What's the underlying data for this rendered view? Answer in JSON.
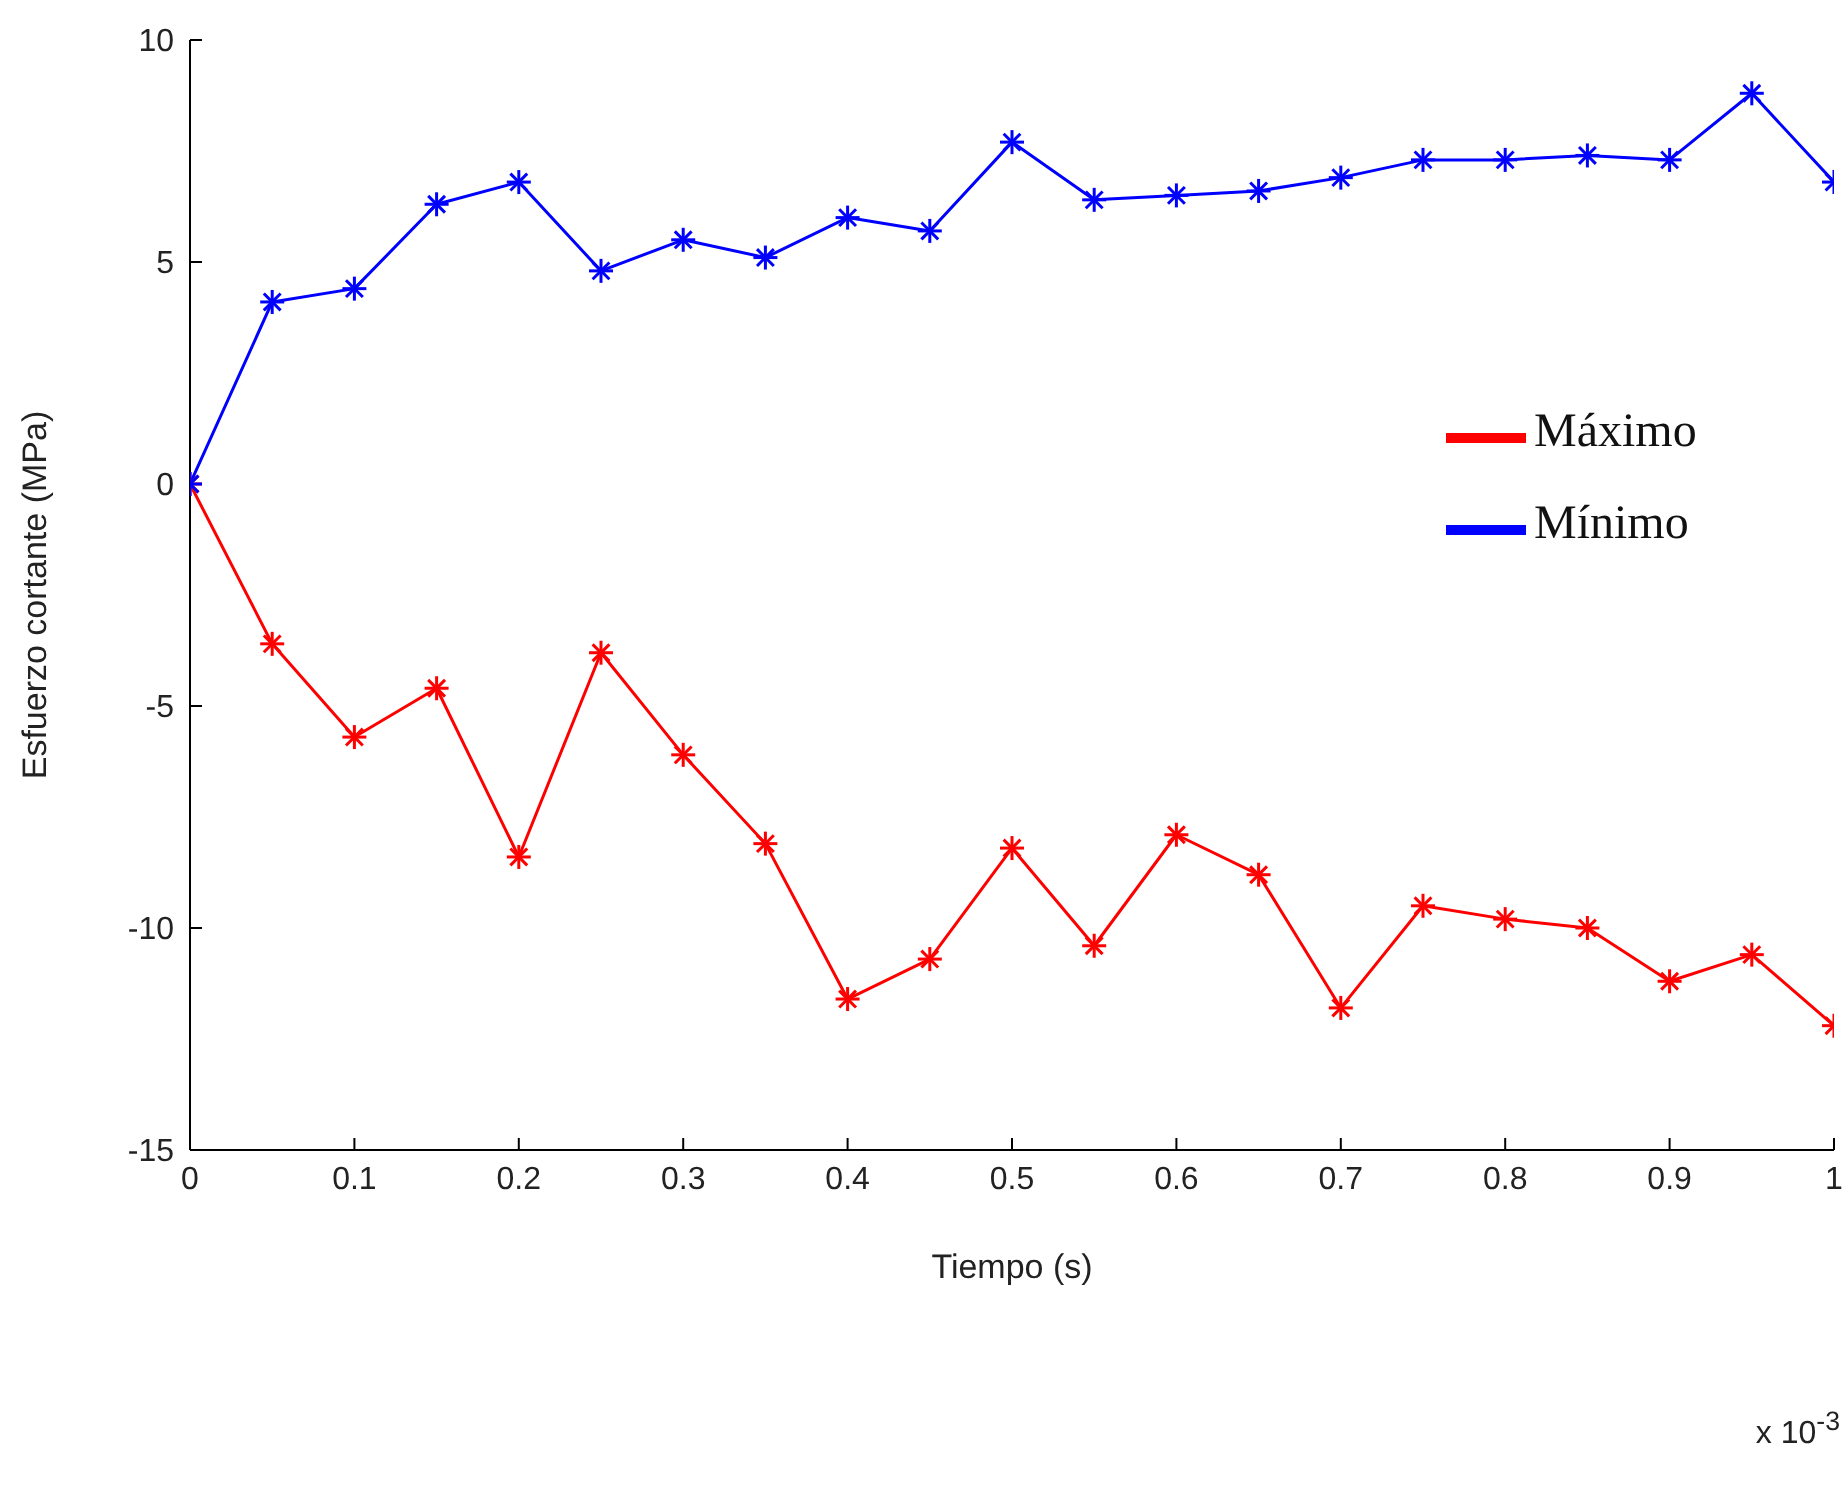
{
  "chart_data": {
    "type": "line",
    "xlabel": "Tiempo (s)",
    "ylabel": "Esfuerzo cortante (MPa)",
    "x": [
      0,
      0.05,
      0.1,
      0.15,
      0.2,
      0.25,
      0.3,
      0.35,
      0.4,
      0.45,
      0.5,
      0.55,
      0.6,
      0.65,
      0.7,
      0.75,
      0.8,
      0.85,
      0.9,
      0.95,
      1
    ],
    "series": [
      {
        "name": "Máximo",
        "color": "#ff0000",
        "values": [
          0,
          -3.6,
          -5.7,
          -4.6,
          -8.4,
          -3.8,
          -6.1,
          -8.1,
          -11.6,
          -10.7,
          -8.2,
          -10.4,
          -7.9,
          -8.8,
          -11.8,
          -9.5,
          -9.8,
          -10.0,
          -11.2,
          -10.6,
          -12.2
        ]
      },
      {
        "name": "Mínimo",
        "color": "#0000ff",
        "values": [
          0,
          4.1,
          4.4,
          6.3,
          6.8,
          4.8,
          5.5,
          5.1,
          6.0,
          5.7,
          7.7,
          6.4,
          6.5,
          6.6,
          6.9,
          7.3,
          7.3,
          7.4,
          7.3,
          8.8,
          6.8
        ]
      }
    ],
    "xlim": [
      0,
      1
    ],
    "xticks": [
      0,
      0.1,
      0.2,
      0.3,
      0.4,
      0.5,
      0.6,
      0.7,
      0.8,
      0.9,
      1
    ],
    "ylim": [
      -15,
      10
    ],
    "yticks": [
      -15,
      -10,
      -5,
      0,
      5,
      10
    ],
    "marker": "cross",
    "line_style": "solid",
    "legend": "right",
    "grid": false,
    "annotations": [
      "x 10$^{-3}$"
    ]
  }
}
